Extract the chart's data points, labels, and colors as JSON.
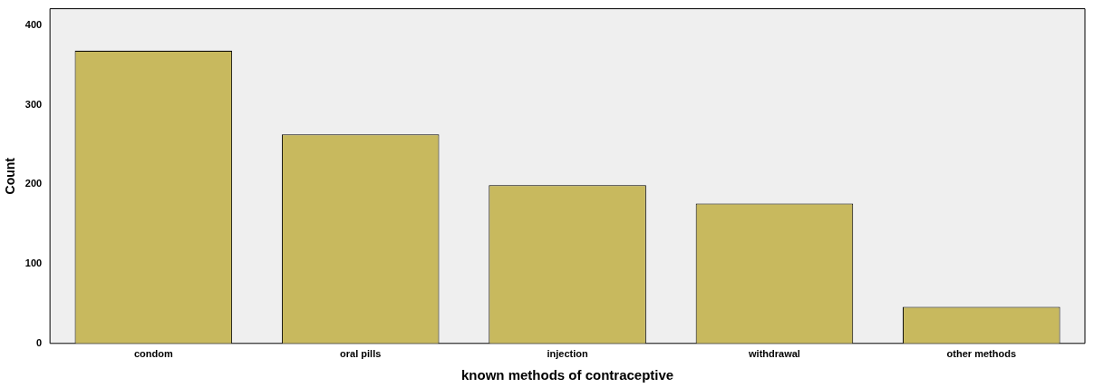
{
  "chart_data": {
    "type": "bar",
    "xlabel": "known methods of contraceptive",
    "ylabel": "Count",
    "categories": [
      "condom",
      "oral pills",
      "injection",
      "withdrawal",
      "other methods"
    ],
    "values": [
      368,
      263,
      199,
      176,
      46
    ],
    "color": "#c8b95e",
    "ylim": [
      0,
      421
    ],
    "yticks": [
      0,
      100,
      200,
      300,
      400
    ],
    "grid": false,
    "legend": false
  }
}
